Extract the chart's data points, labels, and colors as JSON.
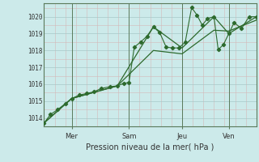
{
  "xlabel": "Pression niveau de la mer( hPa )",
  "bg_color": "#cceaea",
  "line_color": "#2d6a2d",
  "grid_major_color": "#a8c8c8",
  "grid_minor_color": "#d4b8b8",
  "axis_color": "#5a7a5a",
  "ylim": [
    1013.5,
    1020.8
  ],
  "yticks": [
    1014,
    1015,
    1016,
    1017,
    1018,
    1019,
    1020
  ],
  "xtick_labels": [
    "Mer",
    "Sam",
    "Jeu",
    "Ven"
  ],
  "xtick_positions": [
    0.13,
    0.4,
    0.65,
    0.87
  ],
  "series1_x": [
    0.0,
    0.03,
    0.065,
    0.1,
    0.13,
    0.165,
    0.2,
    0.235,
    0.27,
    0.31,
    0.345,
    0.375,
    0.4,
    0.425,
    0.455,
    0.485,
    0.515,
    0.545,
    0.575,
    0.605,
    0.635,
    0.665,
    0.695,
    0.72,
    0.745,
    0.77,
    0.8,
    0.82,
    0.845,
    0.87,
    0.895,
    0.93,
    0.965,
    1.0
  ],
  "series1_y": [
    1013.7,
    1014.2,
    1014.5,
    1014.85,
    1015.15,
    1015.35,
    1015.45,
    1015.55,
    1015.75,
    1015.85,
    1015.9,
    1016.05,
    1016.1,
    1018.2,
    1018.5,
    1018.85,
    1019.4,
    1019.05,
    1018.2,
    1018.15,
    1018.15,
    1018.5,
    1020.55,
    1020.1,
    1019.5,
    1019.9,
    1020.0,
    1018.05,
    1018.35,
    1019.0,
    1019.65,
    1019.3,
    1020.0,
    1020.0
  ],
  "series2_x": [
    0.0,
    0.13,
    0.345,
    0.515,
    0.65,
    0.8,
    0.87,
    1.0
  ],
  "series2_y": [
    1013.7,
    1015.15,
    1015.9,
    1019.4,
    1018.15,
    1020.0,
    1019.0,
    1020.0
  ],
  "series3_x": [
    0.0,
    0.13,
    0.345,
    0.515,
    0.65,
    0.8,
    0.87,
    1.0
  ],
  "series3_y": [
    1013.7,
    1015.15,
    1015.9,
    1018.0,
    1017.8,
    1019.2,
    1019.15,
    1019.8
  ],
  "minor_xtick_count": 20
}
